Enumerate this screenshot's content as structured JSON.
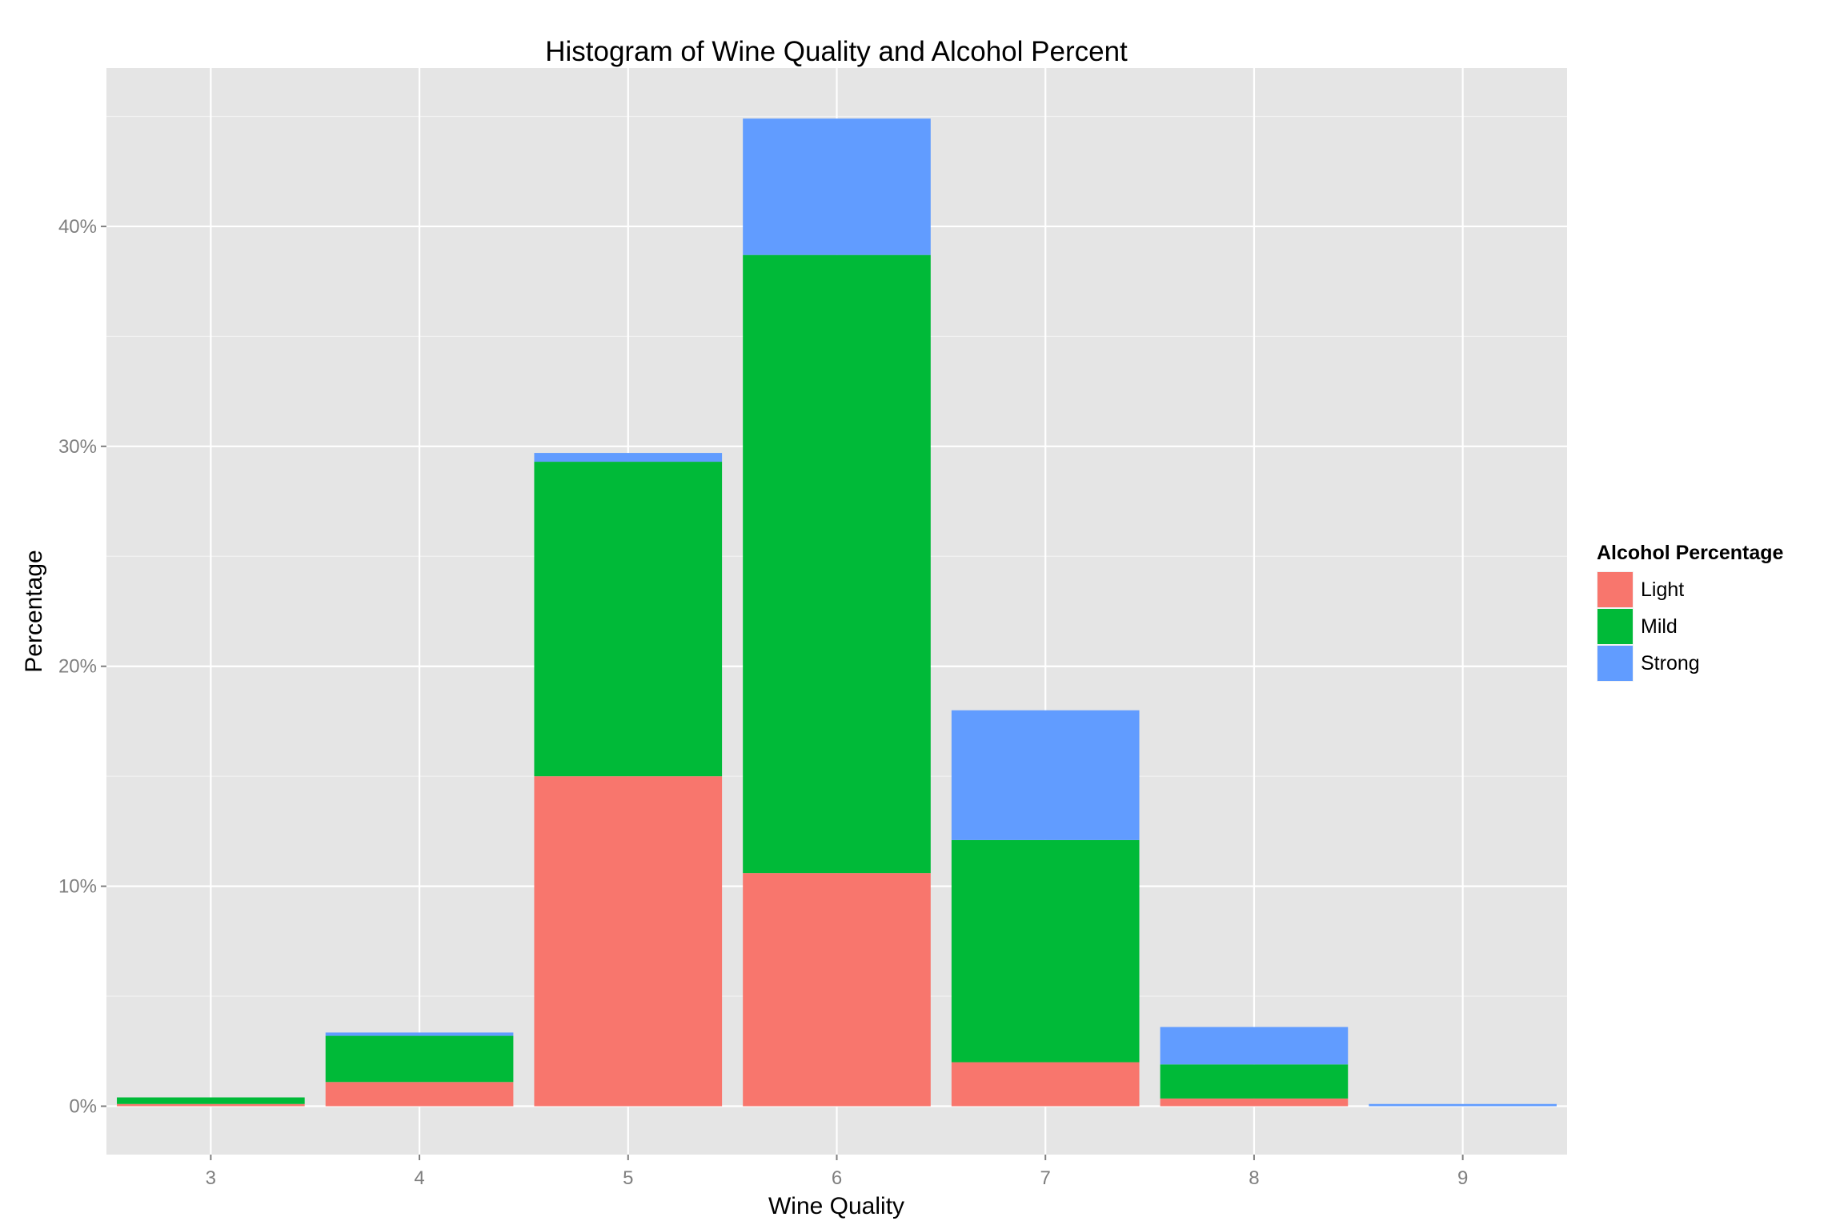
{
  "chart_data": {
    "type": "bar",
    "stacked": true,
    "title": "Histogram of Wine Quality and Alcohol Percent",
    "xlabel": "Wine Quality",
    "ylabel": "Percentage",
    "categories": [
      "3",
      "4",
      "5",
      "6",
      "7",
      "8",
      "9"
    ],
    "series": [
      {
        "name": "Light",
        "color": "#F8766D",
        "values": [
          0.1,
          1.1,
          15.0,
          10.6,
          2.0,
          0.35,
          0.0
        ]
      },
      {
        "name": "Mild",
        "color": "#00BA38",
        "values": [
          0.3,
          2.1,
          14.3,
          28.1,
          10.1,
          1.55,
          0.0
        ]
      },
      {
        "name": "Strong",
        "color": "#619CFF",
        "values": [
          0.0,
          0.15,
          0.4,
          6.2,
          5.9,
          1.7,
          0.1
        ]
      }
    ],
    "ylim": [
      -2.2,
      47.2
    ],
    "yticks": [
      0,
      10,
      20,
      30,
      40
    ],
    "ytick_labels": [
      "0%",
      "10%",
      "20%",
      "30%",
      "40%"
    ],
    "grid": true,
    "legend": {
      "title": "Alcohol Percentage",
      "position": "right"
    }
  }
}
